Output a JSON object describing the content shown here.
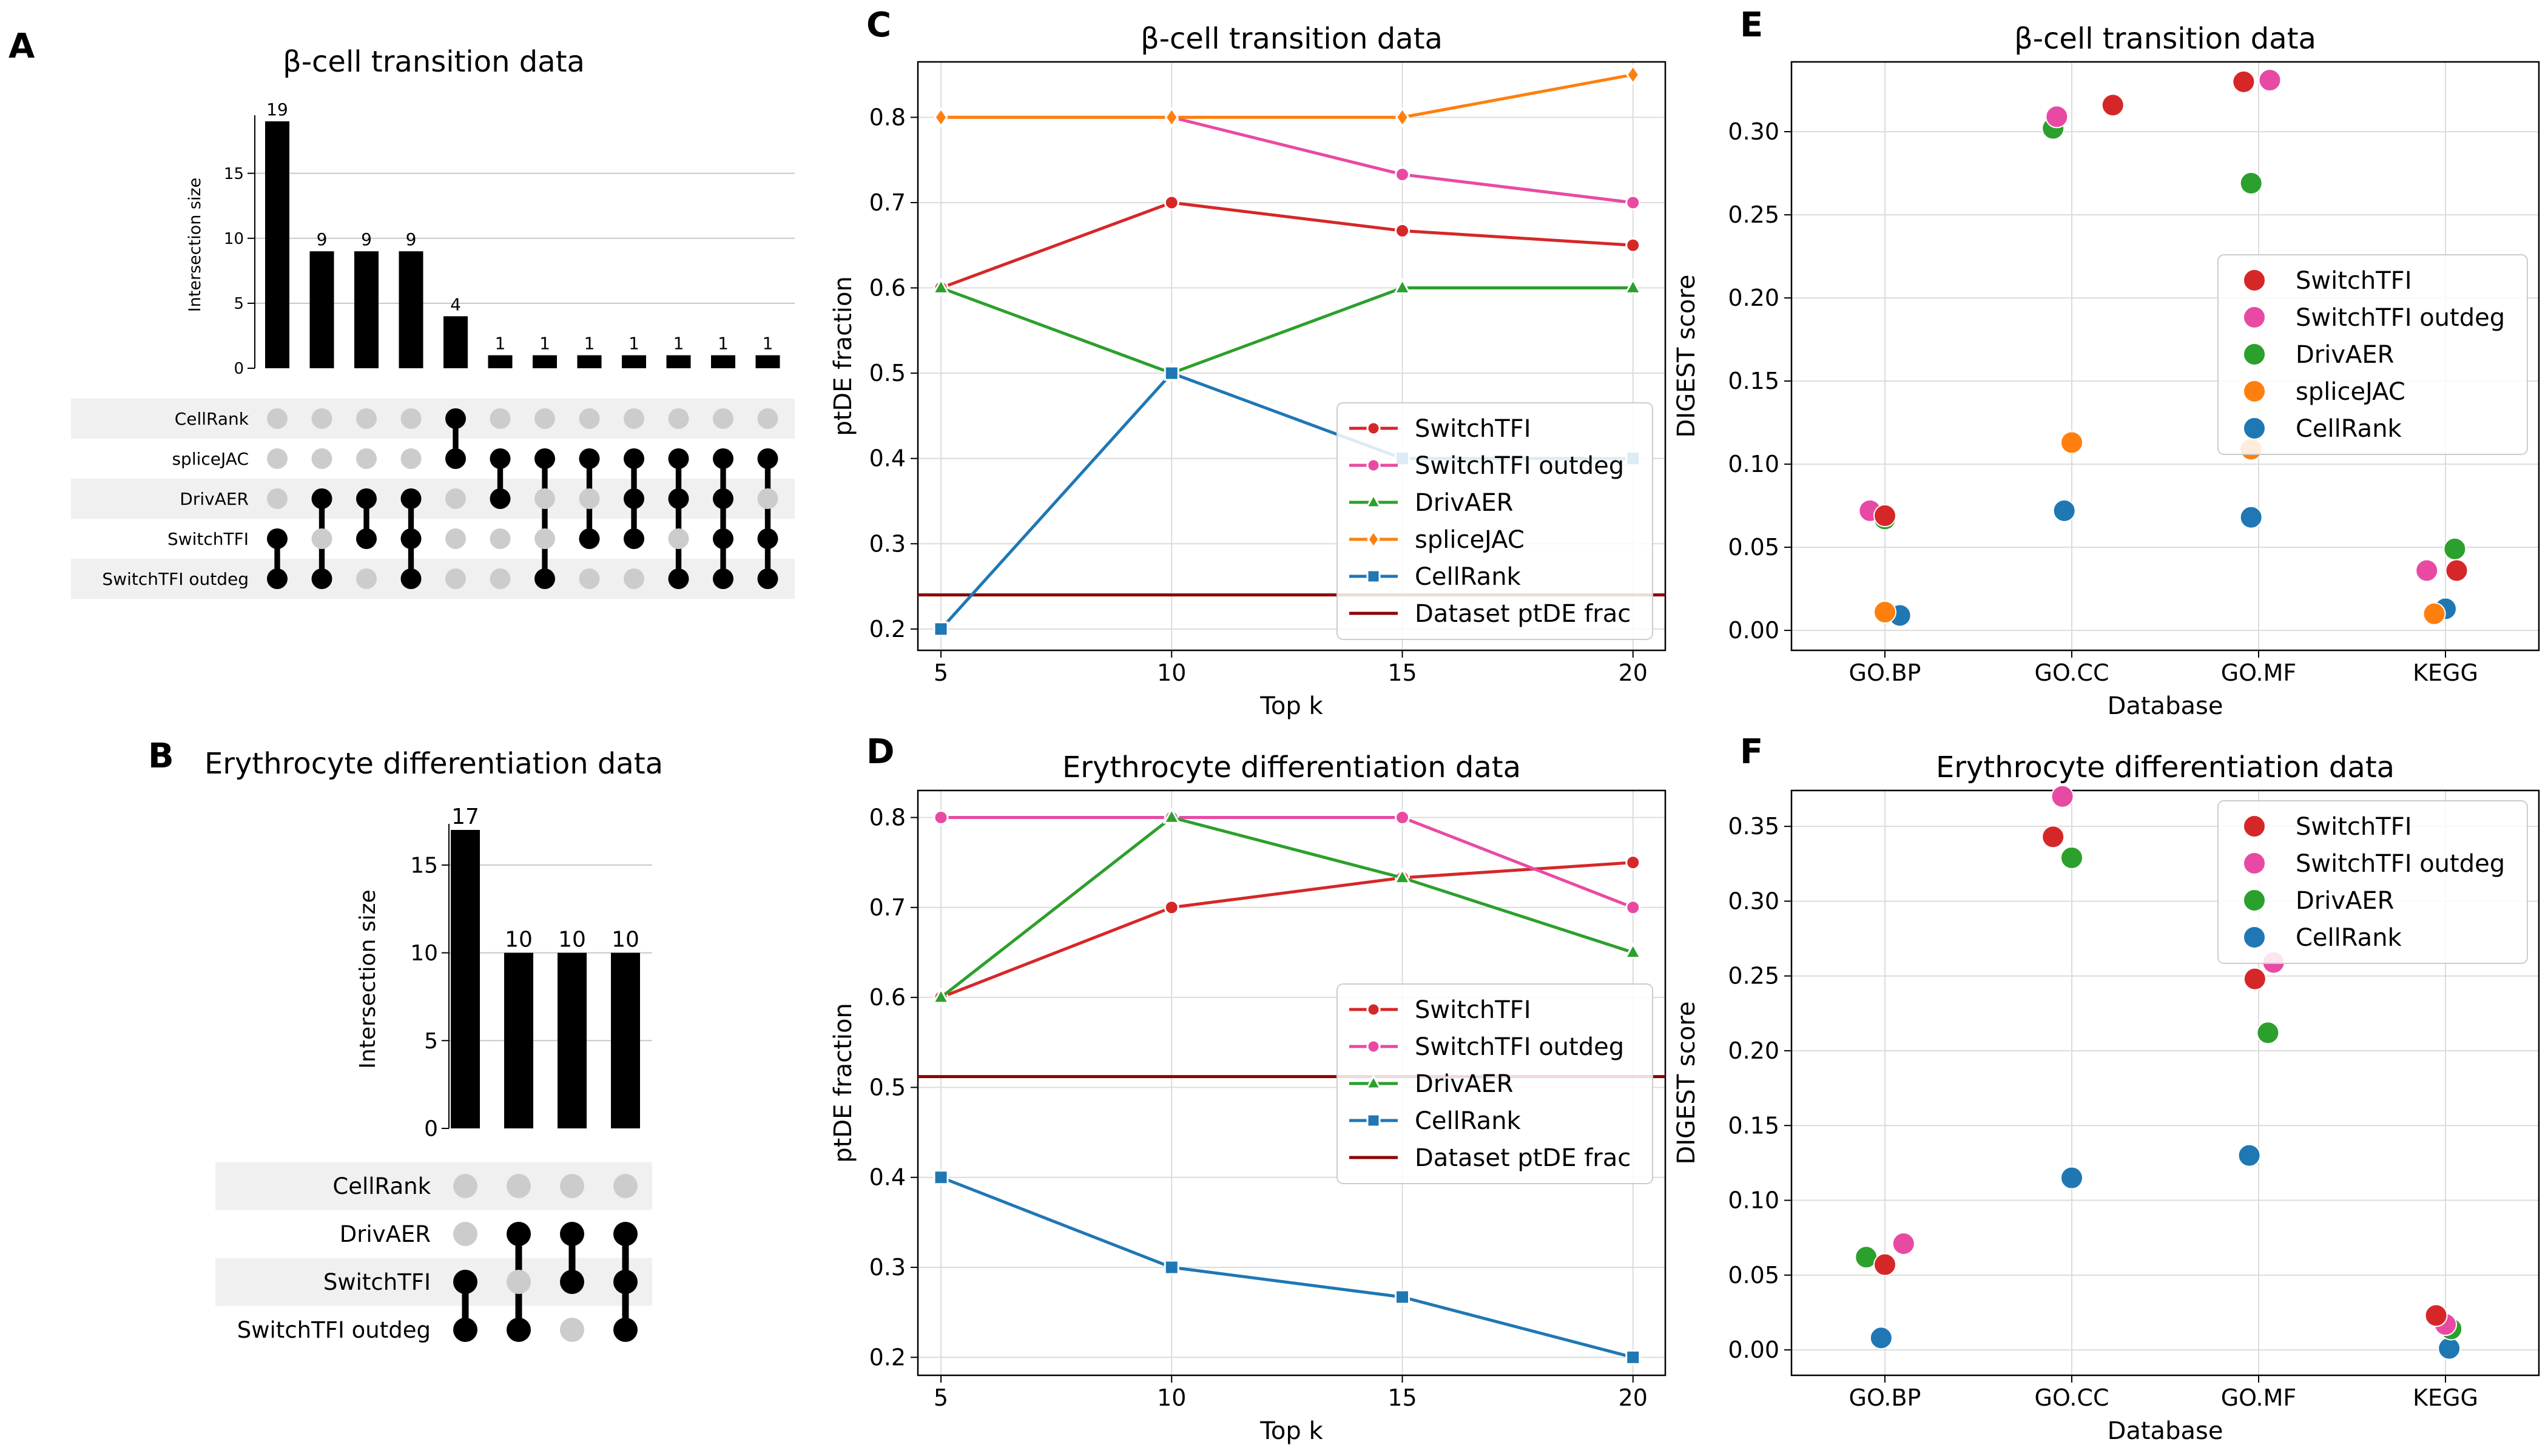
{
  "panel_letters": {
    "A": "A",
    "B": "B",
    "C": "C",
    "D": "D",
    "E": "E",
    "F": "F"
  },
  "colors": {
    "SwitchTFI": "#d62728",
    "SwitchTFI outdeg": "#e84aa3",
    "DrivAER": "#2ca02c",
    "spliceJAC": "#ff7f0e",
    "CellRank": "#1f77b4",
    "Dataset ptDE frac": "#8b0000"
  },
  "chart_data": [
    {
      "id": "A",
      "type": "bar",
      "subtype": "upset",
      "title": "β-cell transition data",
      "ylabel": "Intersection size",
      "yticks": [
        0,
        5,
        10,
        15
      ],
      "ylim": [
        0,
        19
      ],
      "sets": [
        "CellRank",
        "spliceJAC",
        "DrivAER",
        "SwitchTFI",
        "SwitchTFI outdeg"
      ],
      "values": [
        19,
        9,
        9,
        9,
        4,
        1,
        1,
        1,
        1,
        1,
        1,
        1
      ],
      "membership": [
        [
          "SwitchTFI",
          "SwitchTFI outdeg"
        ],
        [
          "DrivAER",
          "SwitchTFI outdeg"
        ],
        [
          "DrivAER",
          "SwitchTFI"
        ],
        [
          "DrivAER",
          "SwitchTFI",
          "SwitchTFI outdeg"
        ],
        [
          "CellRank",
          "spliceJAC"
        ],
        [
          "spliceJAC",
          "DrivAER"
        ],
        [
          "spliceJAC",
          "SwitchTFI outdeg"
        ],
        [
          "spliceJAC",
          "SwitchTFI"
        ],
        [
          "spliceJAC",
          "DrivAER",
          "SwitchTFI"
        ],
        [
          "spliceJAC",
          "DrivAER",
          "SwitchTFI outdeg"
        ],
        [
          "spliceJAC",
          "DrivAER",
          "SwitchTFI",
          "SwitchTFI outdeg"
        ],
        [
          "spliceJAC",
          "SwitchTFI",
          "SwitchTFI outdeg"
        ]
      ]
    },
    {
      "id": "B",
      "type": "bar",
      "subtype": "upset",
      "title": "Erythrocyte differentiation data",
      "ylabel": "Intersection size",
      "yticks": [
        0,
        5,
        10,
        15
      ],
      "ylim": [
        0,
        17
      ],
      "sets": [
        "CellRank",
        "DrivAER",
        "SwitchTFI",
        "SwitchTFI outdeg"
      ],
      "values": [
        17,
        10,
        10,
        10
      ],
      "membership": [
        [
          "SwitchTFI",
          "SwitchTFI outdeg"
        ],
        [
          "DrivAER",
          "SwitchTFI outdeg"
        ],
        [
          "DrivAER",
          "SwitchTFI"
        ],
        [
          "DrivAER",
          "SwitchTFI",
          "SwitchTFI outdeg"
        ]
      ]
    },
    {
      "id": "C",
      "type": "line",
      "title": "β-cell transition data",
      "xlabel": "Top k",
      "ylabel": "ptDE fraction",
      "x": [
        5,
        10,
        15,
        20
      ],
      "xlim": [
        4.5,
        20.7
      ],
      "ylim": [
        0.175,
        0.865
      ],
      "yticks": [
        0.2,
        0.3,
        0.4,
        0.5,
        0.6,
        0.7,
        0.8
      ],
      "yticklabels": [
        "0.2",
        "0.3",
        "0.4",
        "0.5",
        "0.6",
        "0.7",
        "0.8"
      ],
      "grid": true,
      "legend_position": "lower-right",
      "series": [
        {
          "name": "SwitchTFI",
          "marker": "circle",
          "values": [
            0.6,
            0.7,
            0.667,
            0.65
          ]
        },
        {
          "name": "SwitchTFI outdeg",
          "marker": "circle",
          "values": [
            0.8,
            0.8,
            0.733,
            0.7
          ]
        },
        {
          "name": "DrivAER",
          "marker": "triangle",
          "values": [
            0.6,
            0.5,
            0.6,
            0.6
          ]
        },
        {
          "name": "spliceJAC",
          "marker": "diamond",
          "values": [
            0.8,
            0.8,
            0.8,
            0.85
          ]
        },
        {
          "name": "CellRank",
          "marker": "square",
          "values": [
            0.2,
            0.5,
            0.4,
            0.4
          ]
        }
      ],
      "reference_line": {
        "name": "Dataset ptDE frac",
        "value": 0.24
      }
    },
    {
      "id": "D",
      "type": "line",
      "title": "Erythrocyte differentiation data",
      "xlabel": "Top k",
      "ylabel": "ptDE fraction",
      "x": [
        5,
        10,
        15,
        20
      ],
      "xlim": [
        4.5,
        20.7
      ],
      "ylim": [
        0.18,
        0.83
      ],
      "yticks": [
        0.2,
        0.3,
        0.4,
        0.5,
        0.6,
        0.7,
        0.8
      ],
      "yticklabels": [
        "0.2",
        "0.3",
        "0.4",
        "0.5",
        "0.6",
        "0.7",
        "0.8"
      ],
      "grid": true,
      "legend_position": "right",
      "series": [
        {
          "name": "SwitchTFI",
          "marker": "circle",
          "values": [
            0.6,
            0.7,
            0.733,
            0.75
          ]
        },
        {
          "name": "SwitchTFI outdeg",
          "marker": "circle",
          "values": [
            0.8,
            0.8,
            0.8,
            0.7
          ]
        },
        {
          "name": "DrivAER",
          "marker": "triangle",
          "values": [
            0.6,
            0.8,
            0.733,
            0.65
          ]
        },
        {
          "name": "CellRank",
          "marker": "square",
          "values": [
            0.4,
            0.3,
            0.267,
            0.2
          ]
        }
      ],
      "reference_line": {
        "name": "Dataset ptDE frac",
        "value": 0.512
      }
    },
    {
      "id": "E",
      "type": "scatter",
      "title": "β-cell transition data",
      "xlabel": "Database",
      "ylabel": "DIGEST score",
      "categories": [
        "GO.BP",
        "GO.CC",
        "GO.MF",
        "KEGG"
      ],
      "ylim": [
        -0.012,
        0.342
      ],
      "yticks": [
        0.0,
        0.05,
        0.1,
        0.15,
        0.2,
        0.25,
        0.3
      ],
      "yticklabels": [
        "0.00",
        "0.05",
        "0.10",
        "0.15",
        "0.20",
        "0.25",
        "0.30"
      ],
      "grid": true,
      "legend_position": "center-right",
      "series": [
        {
          "name": "SwitchTFI",
          "values": [
            0.069,
            0.316,
            0.33,
            0.036
          ],
          "offsets": [
            0.0,
            0.22,
            -0.08,
            0.06
          ]
        },
        {
          "name": "SwitchTFI outdeg",
          "values": [
            0.072,
            0.309,
            0.331,
            0.036
          ],
          "offsets": [
            -0.08,
            -0.08,
            0.06,
            -0.1
          ]
        },
        {
          "name": "DrivAER",
          "values": [
            0.067,
            0.302,
            0.269,
            0.049
          ],
          "offsets": [
            0.0,
            -0.1,
            -0.04,
            0.05
          ]
        },
        {
          "name": "spliceJAC",
          "values": [
            0.011,
            0.113,
            0.109,
            0.01
          ],
          "offsets": [
            0.0,
            0.0,
            -0.04,
            -0.06
          ]
        },
        {
          "name": "CellRank",
          "values": [
            0.009,
            0.072,
            0.068,
            0.013
          ],
          "offsets": [
            0.08,
            -0.04,
            -0.04,
            0.0
          ]
        }
      ]
    },
    {
      "id": "F",
      "type": "scatter",
      "title": "Erythrocyte differentiation data",
      "xlabel": "Database",
      "ylabel": "DIGEST score",
      "categories": [
        "GO.BP",
        "GO.CC",
        "GO.MF",
        "KEGG"
      ],
      "ylim": [
        -0.017,
        0.374
      ],
      "yticks": [
        0.0,
        0.05,
        0.1,
        0.15,
        0.2,
        0.25,
        0.3,
        0.35
      ],
      "yticklabels": [
        "0.00",
        "0.05",
        "0.10",
        "0.15",
        "0.20",
        "0.25",
        "0.30",
        "0.35"
      ],
      "grid": true,
      "legend_position": "upper-right",
      "series": [
        {
          "name": "SwitchTFI",
          "values": [
            0.057,
            0.343,
            0.248,
            0.023
          ],
          "offsets": [
            0.0,
            -0.1,
            -0.02,
            -0.05
          ]
        },
        {
          "name": "SwitchTFI outdeg",
          "values": [
            0.071,
            0.37,
            0.259,
            0.017
          ],
          "offsets": [
            0.1,
            -0.05,
            0.08,
            0.0
          ]
        },
        {
          "name": "DrivAER",
          "values": [
            0.062,
            0.329,
            0.212,
            0.014
          ],
          "offsets": [
            -0.1,
            0.0,
            0.05,
            0.03
          ]
        },
        {
          "name": "CellRank",
          "values": [
            0.008,
            0.115,
            0.13,
            0.001
          ],
          "offsets": [
            -0.02,
            0.0,
            -0.05,
            0.02
          ]
        }
      ]
    }
  ]
}
